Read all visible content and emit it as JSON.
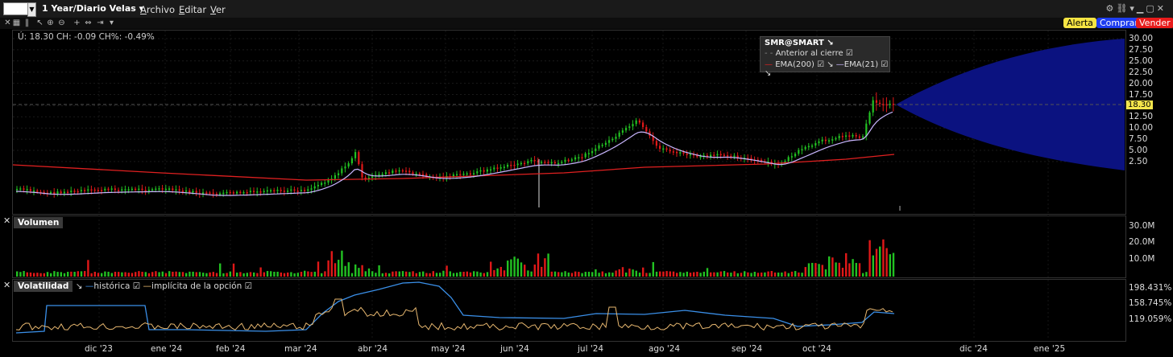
{
  "titlebar": {
    "symbol_value": "",
    "period": "1 Year/Diario Velas",
    "menus": [
      {
        "key": "A",
        "rest": "rchivo"
      },
      {
        "key": "E",
        "rest": "ditar"
      },
      {
        "key": "V",
        "rest": "er"
      }
    ]
  },
  "toolbar": {
    "alert_label": "Alerta",
    "buy_label": "Comprar",
    "sell_label": "Vender"
  },
  "price_pane": {
    "last_info": "Ú: 18.30 CH: -0.09 CH%: -0.49%",
    "legend": {
      "title": "SMR@SMART",
      "prev_close": "Anterior al cierre",
      "ema200": "EMA(200)",
      "ema21": "EMA(21)"
    },
    "y_labels": [
      "30.00",
      "27.50",
      "25.00",
      "22.50",
      "20.00",
      "17.50",
      "15.00",
      "12.50",
      "10.00",
      "7.50",
      "5.00",
      "2.50"
    ],
    "last_price_badge": "18.30"
  },
  "volume_pane": {
    "title": "Volumen",
    "y_labels": [
      "30.0M",
      "20.0M",
      "10.0M"
    ]
  },
  "volatility_pane": {
    "title": "Volatilidad",
    "historic": "histórica",
    "implied": "implícita de la opción",
    "y_labels": [
      "198.431%",
      "158.745%",
      "119.059%"
    ]
  },
  "x_labels": [
    "dic '23",
    "ene '24",
    "feb '24",
    "mar '24",
    "abr '24",
    "may '24",
    "jun '24",
    "jul '24",
    "ago '24",
    "sep '24",
    "oct '24",
    "dic '24",
    "ene '25"
  ],
  "colors": {
    "up": "#22c122",
    "down": "#e01818",
    "ema200": "#e02020",
    "ema21": "#c9b6ff",
    "historic": "#3a8fe8",
    "implied": "#e8b870",
    "projection": "#0b1280"
  }
}
